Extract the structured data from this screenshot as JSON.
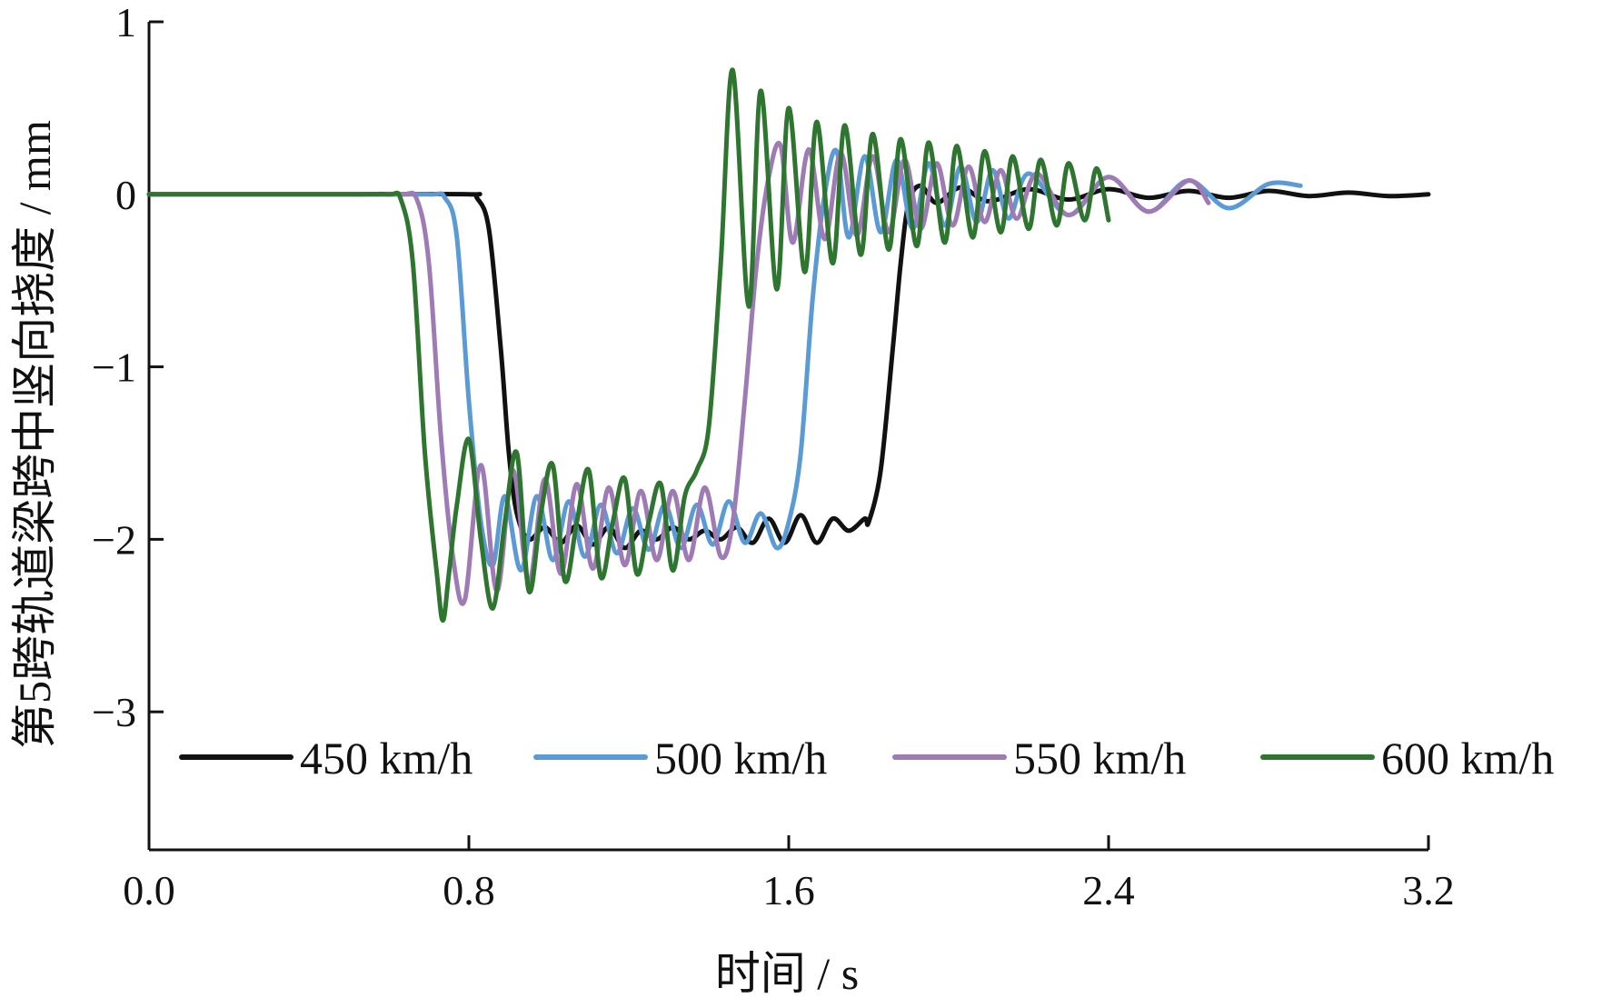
{
  "chart_data": {
    "type": "line",
    "xlabel": "时间 / s",
    "ylabel": "第5跨轨道梁跨中竖向挠度 / mm",
    "xlim": [
      0,
      3.2
    ],
    "ylim": [
      -3.8,
      1
    ],
    "x_ticks": [
      "0.0",
      "0.8",
      "1.6",
      "2.4",
      "3.2"
    ],
    "y_ticks": [
      "1",
      "0",
      "−1",
      "−2",
      "−3"
    ],
    "legend_position": "bottom",
    "series": [
      {
        "name": "450 km/h",
        "color": "#111111",
        "x": [
          0,
          0.5,
          0.8,
          0.82,
          0.85,
          0.88,
          0.9,
          0.92,
          0.95,
          0.99,
          1.03,
          1.07,
          1.11,
          1.15,
          1.19,
          1.23,
          1.27,
          1.31,
          1.35,
          1.39,
          1.43,
          1.47,
          1.51,
          1.55,
          1.59,
          1.63,
          1.67,
          1.71,
          1.75,
          1.79,
          1.8,
          1.83,
          1.86,
          1.88,
          1.9,
          1.93,
          1.97,
          2.03,
          2.1,
          2.2,
          2.3,
          2.4,
          2.5,
          2.6,
          2.7,
          2.8,
          2.9,
          3.0,
          3.1,
          3.2
        ],
        "y": [
          0,
          0,
          0,
          -0.02,
          -0.2,
          -0.9,
          -1.5,
          -1.85,
          -2.0,
          -1.93,
          -2.02,
          -1.92,
          -2.03,
          -1.93,
          -2.05,
          -1.95,
          -2.0,
          -1.93,
          -2.0,
          -1.95,
          -2.0,
          -1.93,
          -2.02,
          -1.88,
          -2.02,
          -1.86,
          -2.02,
          -1.88,
          -1.95,
          -1.88,
          -1.9,
          -1.6,
          -0.9,
          -0.4,
          -0.05,
          0.05,
          -0.05,
          0.04,
          -0.04,
          0.03,
          -0.03,
          0.03,
          -0.02,
          0.02,
          -0.02,
          0.02,
          -0.01,
          0.01,
          -0.01,
          0.0
        ]
      },
      {
        "name": "500 km/h",
        "color": "#5b9bd5",
        "x": [
          0,
          0.5,
          0.7,
          0.74,
          0.77,
          0.8,
          0.83,
          0.86,
          0.89,
          0.93,
          0.97,
          1.01,
          1.05,
          1.09,
          1.13,
          1.17,
          1.21,
          1.25,
          1.29,
          1.33,
          1.37,
          1.41,
          1.45,
          1.49,
          1.53,
          1.57,
          1.6,
          1.63,
          1.66,
          1.69,
          1.72,
          1.75,
          1.79,
          1.83,
          1.87,
          1.91,
          1.95,
          1.99,
          2.03,
          2.07,
          2.11,
          2.15,
          2.2,
          2.3,
          2.4,
          2.5,
          2.6,
          2.7,
          2.8,
          2.88
        ],
        "y": [
          0,
          0,
          0,
          -0.02,
          -0.25,
          -1.2,
          -1.9,
          -2.15,
          -1.75,
          -2.18,
          -1.75,
          -2.12,
          -1.78,
          -2.1,
          -1.8,
          -2.08,
          -1.82,
          -2.06,
          -1.8,
          -2.05,
          -1.8,
          -2.03,
          -1.78,
          -2.02,
          -1.85,
          -2.05,
          -1.9,
          -1.5,
          -0.6,
          0.0,
          0.25,
          -0.25,
          0.22,
          -0.22,
          0.2,
          -0.2,
          0.18,
          -0.18,
          0.16,
          -0.16,
          0.14,
          -0.14,
          0.12,
          -0.12,
          0.1,
          -0.1,
          0.08,
          -0.08,
          0.06,
          0.05
        ]
      },
      {
        "name": "550 km/h",
        "color": "#9e7bb5",
        "x": [
          0,
          0.5,
          0.63,
          0.67,
          0.7,
          0.73,
          0.76,
          0.79,
          0.83,
          0.87,
          0.91,
          0.95,
          0.99,
          1.03,
          1.07,
          1.11,
          1.15,
          1.19,
          1.23,
          1.27,
          1.31,
          1.35,
          1.39,
          1.43,
          1.46,
          1.49,
          1.52,
          1.55,
          1.58,
          1.61,
          1.65,
          1.69,
          1.73,
          1.77,
          1.81,
          1.85,
          1.89,
          1.93,
          1.97,
          2.01,
          2.05,
          2.09,
          2.13,
          2.17,
          2.22,
          2.3,
          2.4,
          2.5,
          2.6,
          2.65
        ],
        "y": [
          0,
          0,
          0,
          -0.03,
          -0.4,
          -1.4,
          -2.1,
          -2.35,
          -1.57,
          -2.3,
          -1.6,
          -2.25,
          -1.65,
          -2.2,
          -1.68,
          -2.17,
          -1.7,
          -2.15,
          -1.72,
          -2.12,
          -1.72,
          -2.12,
          -1.7,
          -2.1,
          -1.9,
          -1.2,
          -0.4,
          0.1,
          0.28,
          -0.28,
          0.26,
          -0.26,
          0.24,
          -0.24,
          0.22,
          -0.22,
          0.2,
          -0.2,
          0.18,
          -0.18,
          0.16,
          -0.16,
          0.14,
          -0.14,
          0.12,
          -0.12,
          0.1,
          -0.1,
          0.08,
          -0.05
        ]
      },
      {
        "name": "600 km/h",
        "color": "#2e7530",
        "x": [
          0,
          0.5,
          0.6,
          0.63,
          0.66,
          0.69,
          0.72,
          0.735,
          0.75,
          0.77,
          0.8,
          0.83,
          0.86,
          0.89,
          0.92,
          0.95,
          0.98,
          1.01,
          1.04,
          1.07,
          1.1,
          1.13,
          1.16,
          1.19,
          1.22,
          1.25,
          1.28,
          1.31,
          1.34,
          1.37,
          1.4,
          1.43,
          1.46,
          1.5,
          1.53,
          1.57,
          1.6,
          1.64,
          1.67,
          1.71,
          1.74,
          1.78,
          1.81,
          1.85,
          1.88,
          1.92,
          1.95,
          1.99,
          2.02,
          2.06,
          2.09,
          2.13,
          2.16,
          2.2,
          2.23,
          2.27,
          2.3,
          2.34,
          2.37,
          2.4
        ],
        "y": [
          0,
          0,
          0,
          -0.03,
          -0.4,
          -1.5,
          -2.2,
          -2.47,
          -2.2,
          -1.8,
          -1.42,
          -2.0,
          -2.4,
          -1.9,
          -1.5,
          -2.3,
          -1.85,
          -1.57,
          -2.24,
          -1.9,
          -1.6,
          -2.22,
          -1.9,
          -1.65,
          -2.2,
          -1.9,
          -1.68,
          -2.18,
          -1.75,
          -1.6,
          -1.35,
          -0.4,
          0.72,
          -0.65,
          0.6,
          -0.55,
          0.5,
          -0.45,
          0.42,
          -0.4,
          0.4,
          -0.35,
          0.35,
          -0.32,
          0.32,
          -0.3,
          0.3,
          -0.28,
          0.28,
          -0.25,
          0.25,
          -0.22,
          0.22,
          -0.2,
          0.2,
          -0.18,
          0.18,
          -0.15,
          0.15,
          -0.15
        ]
      }
    ]
  }
}
